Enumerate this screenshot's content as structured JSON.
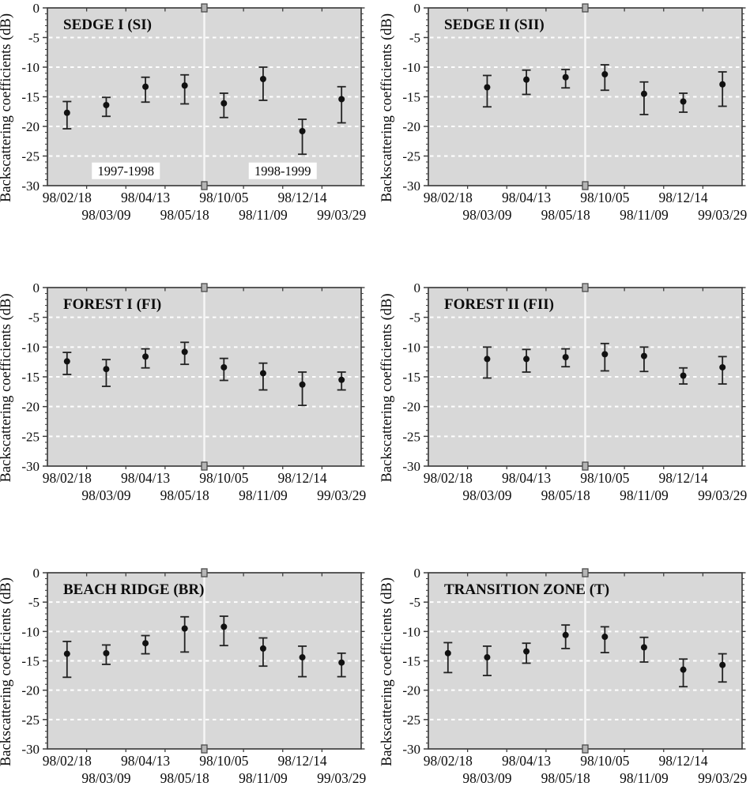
{
  "figure": {
    "ylabel": "Backscattering coefficients (dB)",
    "season_labels": [
      "1997-1998",
      "1998-1999"
    ]
  },
  "colors": {
    "plot_bg": "#d8d8d8",
    "grid": "#ffffff",
    "border": "#3f3f3f",
    "tick": "#3f3f3f",
    "marker": "#111111",
    "error_bar": "#222222",
    "divider": "#f7f7f7",
    "break_fill": "#b5b5b5",
    "break_stroke": "#4a4a4a",
    "annotation_bg": "#ffffff",
    "text": "#0c0c0c"
  },
  "chart_data": [
    {
      "type": "scatter",
      "title": "SEDGE I (SI)",
      "ylabel": "Backscattering coefficients (dB)",
      "ylim": [
        -30,
        0
      ],
      "yticks": [
        0,
        -5,
        -10,
        -15,
        -20,
        -25,
        -30
      ],
      "grid": "horizontal-dashed",
      "legend": "none",
      "categories": [
        "98/02/18",
        "98/03/09",
        "98/04/13",
        "98/05/18",
        "98/10/05",
        "98/11/09",
        "98/12/14",
        "99/03/29"
      ],
      "annotations": [
        {
          "text": "1997-1998",
          "xi": 1.5,
          "y": -27.5
        },
        {
          "text": "1998-1999",
          "xi": 5.5,
          "y": -27.5
        }
      ],
      "points": [
        {
          "x": "98/02/18",
          "y": -17.7,
          "hi": -15.8,
          "lo": -20.4
        },
        {
          "x": "98/03/09",
          "y": -16.4,
          "hi": -15.1,
          "lo": -18.3
        },
        {
          "x": "98/04/13",
          "y": -13.3,
          "hi": -11.7,
          "lo": -15.9
        },
        {
          "x": "98/05/18",
          "y": -13.1,
          "hi": -11.3,
          "lo": -16.2
        },
        {
          "x": "98/10/05",
          "y": -16.1,
          "hi": -14.4,
          "lo": -18.5
        },
        {
          "x": "98/11/09",
          "y": -12.0,
          "hi": -10.0,
          "lo": -15.6
        },
        {
          "x": "98/12/14",
          "y": -20.8,
          "hi": -18.8,
          "lo": -24.7
        },
        {
          "x": "99/03/29",
          "y": -15.4,
          "hi": -13.3,
          "lo": -19.4
        }
      ]
    },
    {
      "type": "scatter",
      "title": "SEDGE II (SII)",
      "ylabel": "Backscattering coefficients (dB)",
      "ylim": [
        -30,
        0
      ],
      "yticks": [
        0,
        -5,
        -10,
        -15,
        -20,
        -25,
        -30
      ],
      "grid": "horizontal-dashed",
      "legend": "none",
      "categories": [
        "98/02/18",
        "98/03/09",
        "98/04/13",
        "98/05/18",
        "98/10/05",
        "98/11/09",
        "98/12/14",
        "99/03/29"
      ],
      "annotations": [],
      "points": [
        {
          "x": "98/03/09",
          "y": -13.4,
          "hi": -11.4,
          "lo": -16.7
        },
        {
          "x": "98/04/13",
          "y": -12.1,
          "hi": -10.5,
          "lo": -14.6
        },
        {
          "x": "98/05/18",
          "y": -11.7,
          "hi": -10.4,
          "lo": -13.5
        },
        {
          "x": "98/10/05",
          "y": -11.2,
          "hi": -9.6,
          "lo": -13.9
        },
        {
          "x": "98/11/09",
          "y": -14.5,
          "hi": -12.5,
          "lo": -18.0
        },
        {
          "x": "98/12/14",
          "y": -15.8,
          "hi": -14.4,
          "lo": -17.6
        },
        {
          "x": "99/03/29",
          "y": -12.9,
          "hi": -10.8,
          "lo": -16.6
        }
      ]
    },
    {
      "type": "scatter",
      "title": "FOREST I (FI)",
      "ylabel": "Backscattering coefficients (dB)",
      "ylim": [
        -30,
        0
      ],
      "yticks": [
        0,
        -5,
        -10,
        -15,
        -20,
        -25,
        -30
      ],
      "grid": "horizontal-dashed",
      "legend": "none",
      "categories": [
        "98/02/18",
        "98/03/09",
        "98/04/13",
        "98/05/18",
        "98/10/05",
        "98/11/09",
        "98/12/14",
        "99/03/29"
      ],
      "annotations": [],
      "points": [
        {
          "x": "98/02/18",
          "y": -12.4,
          "hi": -10.9,
          "lo": -14.6
        },
        {
          "x": "98/03/09",
          "y": -13.7,
          "hi": -12.1,
          "lo": -16.6
        },
        {
          "x": "98/04/13",
          "y": -11.6,
          "hi": -10.3,
          "lo": -13.5
        },
        {
          "x": "98/05/18",
          "y": -10.8,
          "hi": -9.2,
          "lo": -12.9
        },
        {
          "x": "98/10/05",
          "y": -13.4,
          "hi": -11.9,
          "lo": -15.6
        },
        {
          "x": "98/11/09",
          "y": -14.4,
          "hi": -12.7,
          "lo": -17.2
        },
        {
          "x": "98/12/14",
          "y": -16.3,
          "hi": -14.2,
          "lo": -19.8
        },
        {
          "x": "99/03/29",
          "y": -15.5,
          "hi": -14.2,
          "lo": -17.2
        }
      ]
    },
    {
      "type": "scatter",
      "title": "FOREST II (FII)",
      "ylabel": "Backscattering coefficients (dB)",
      "ylim": [
        -30,
        0
      ],
      "yticks": [
        0,
        -5,
        -10,
        -15,
        -20,
        -25,
        -30
      ],
      "grid": "horizontal-dashed",
      "legend": "none",
      "categories": [
        "98/02/18",
        "98/03/09",
        "98/04/13",
        "98/05/18",
        "98/10/05",
        "98/11/09",
        "98/12/14",
        "99/03/29"
      ],
      "annotations": [],
      "points": [
        {
          "x": "98/03/09",
          "y": -12.0,
          "hi": -10.0,
          "lo": -15.2
        },
        {
          "x": "98/04/13",
          "y": -12.0,
          "hi": -10.4,
          "lo": -14.2
        },
        {
          "x": "98/05/18",
          "y": -11.7,
          "hi": -10.3,
          "lo": -13.3
        },
        {
          "x": "98/10/05",
          "y": -11.2,
          "hi": -9.4,
          "lo": -14.0
        },
        {
          "x": "98/11/09",
          "y": -11.5,
          "hi": -10.0,
          "lo": -14.1
        },
        {
          "x": "98/12/14",
          "y": -14.8,
          "hi": -13.5,
          "lo": -16.2
        },
        {
          "x": "99/03/29",
          "y": -13.4,
          "hi": -11.6,
          "lo": -16.2
        }
      ]
    },
    {
      "type": "scatter",
      "title": "BEACH RIDGE (BR)",
      "ylabel": "Backscattering coefficients (dB)",
      "ylim": [
        -30,
        0
      ],
      "yticks": [
        0,
        -5,
        -10,
        -15,
        -20,
        -25,
        -30
      ],
      "grid": "horizontal-dashed",
      "legend": "none",
      "categories": [
        "98/02/18",
        "98/03/09",
        "98/04/13",
        "98/05/18",
        "98/10/05",
        "98/11/09",
        "98/12/14",
        "99/03/29"
      ],
      "annotations": [],
      "points": [
        {
          "x": "98/02/18",
          "y": -13.8,
          "hi": -11.7,
          "lo": -17.8
        },
        {
          "x": "98/03/09",
          "y": -13.7,
          "hi": -12.3,
          "lo": -15.6
        },
        {
          "x": "98/04/13",
          "y": -12.0,
          "hi": -10.7,
          "lo": -13.8
        },
        {
          "x": "98/05/18",
          "y": -9.5,
          "hi": -7.5,
          "lo": -13.5
        },
        {
          "x": "98/10/05",
          "y": -9.2,
          "hi": -7.4,
          "lo": -12.4
        },
        {
          "x": "98/11/09",
          "y": -12.9,
          "hi": -11.1,
          "lo": -15.9
        },
        {
          "x": "98/12/14",
          "y": -14.4,
          "hi": -12.5,
          "lo": -17.7
        },
        {
          "x": "99/03/29",
          "y": -15.3,
          "hi": -13.7,
          "lo": -17.7
        }
      ]
    },
    {
      "type": "scatter",
      "title": "TRANSITION ZONE (T)",
      "ylabel": "Backscattering coefficients (dB)",
      "ylim": [
        -30,
        0
      ],
      "yticks": [
        0,
        -5,
        -10,
        -15,
        -20,
        -25,
        -30
      ],
      "grid": "horizontal-dashed",
      "legend": "none",
      "categories": [
        "98/02/18",
        "98/03/09",
        "98/04/13",
        "98/05/18",
        "98/10/05",
        "98/11/09",
        "98/12/14",
        "99/03/29"
      ],
      "annotations": [],
      "points": [
        {
          "x": "98/02/18",
          "y": -13.7,
          "hi": -11.9,
          "lo": -17.0
        },
        {
          "x": "98/03/09",
          "y": -14.4,
          "hi": -12.5,
          "lo": -17.5
        },
        {
          "x": "98/04/13",
          "y": -13.4,
          "hi": -12.0,
          "lo": -15.4
        },
        {
          "x": "98/05/18",
          "y": -10.6,
          "hi": -8.9,
          "lo": -12.9
        },
        {
          "x": "98/10/05",
          "y": -10.9,
          "hi": -9.2,
          "lo": -13.6
        },
        {
          "x": "98/11/09",
          "y": -12.7,
          "hi": -11.0,
          "lo": -15.2
        },
        {
          "x": "98/12/14",
          "y": -16.5,
          "hi": -14.7,
          "lo": -19.4
        },
        {
          "x": "99/03/29",
          "y": -15.7,
          "hi": -13.8,
          "lo": -18.6
        }
      ]
    }
  ]
}
